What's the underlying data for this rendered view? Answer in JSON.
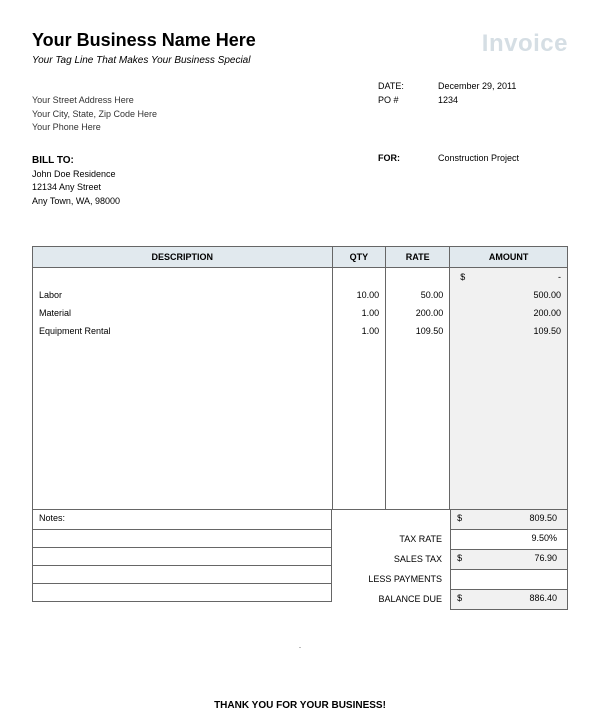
{
  "header": {
    "business_name": "Your Business Name Here",
    "invoice_word": "Invoice",
    "tagline": "Your Tag Line That Makes Your Business Special",
    "address_lines": [
      "Your Street Address Here",
      "Your City, State, Zip Code Here",
      "Your Phone Here"
    ]
  },
  "meta": {
    "date_label": "DATE:",
    "po_label": "PO #",
    "date_value": "December 29, 2011",
    "po_value": "1234"
  },
  "bill": {
    "title": "BILL TO:",
    "lines": [
      "John Doe Residence",
      "12134 Any Street",
      "Any Town, WA, 98000"
    ]
  },
  "for": {
    "label": "FOR:",
    "value": "Construction Project"
  },
  "table": {
    "columns": [
      "DESCRIPTION",
      "QTY",
      "RATE",
      "AMOUNT"
    ],
    "header_bg": "#e1e9ee",
    "amount_bg": "#f1f1f1",
    "currency": "$",
    "dash": "-",
    "rows": [
      {
        "desc": "Labor",
        "qty": "10.00",
        "rate": "50.00",
        "amount": "500.00"
      },
      {
        "desc": "Material",
        "qty": "1.00",
        "rate": "200.00",
        "amount": "200.00"
      },
      {
        "desc": "Equipment Rental",
        "qty": "1.00",
        "rate": "109.50",
        "amount": "109.50"
      }
    ]
  },
  "notes_label": "Notes:",
  "totals": {
    "subtotal": {
      "value": "809.50"
    },
    "tax_rate": {
      "label": "TAX RATE",
      "value": "9.50%"
    },
    "sales_tax": {
      "label": "SALES TAX",
      "value": "76.90"
    },
    "less_payments": {
      "label": "LESS PAYMENTS",
      "value": ""
    },
    "balance_due": {
      "label": "BALANCE DUE",
      "value": "886.40"
    }
  },
  "footer": {
    "thanks": "THANK YOU FOR YOUR BUSINESS!"
  }
}
